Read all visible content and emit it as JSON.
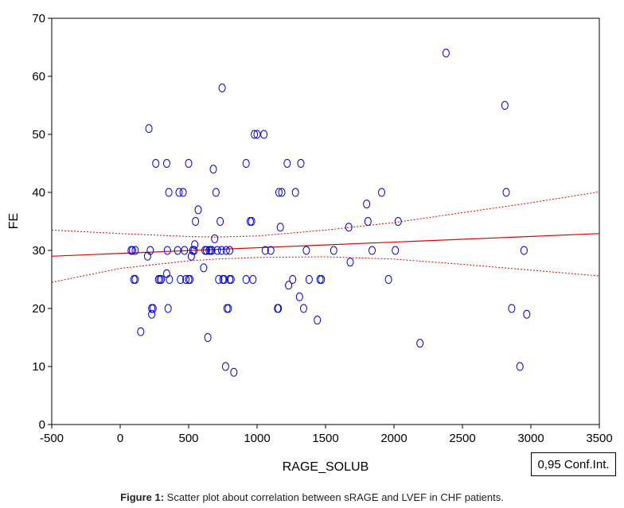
{
  "chart_data": {
    "type": "scatter",
    "xlabel": "RAGE_SOLUB",
    "ylabel": "FE",
    "xlim": [
      -500,
      3500
    ],
    "ylim": [
      0,
      70
    ],
    "xticks": [
      -500,
      0,
      500,
      1000,
      1500,
      2000,
      2500,
      3000,
      3500
    ],
    "yticks": [
      0,
      10,
      20,
      30,
      40,
      50,
      60,
      70
    ],
    "grid": false,
    "legend": "0,95 Conf.Int.",
    "legend_placement": "bottom-right",
    "marker_color": "#0000cc",
    "fit_color": "#dd0000",
    "fit_line": {
      "x": [
        -500,
        3500
      ],
      "y": [
        29.0,
        32.9
      ]
    },
    "conf_upper": {
      "x": [
        -500,
        0,
        500,
        700,
        1000,
        1500,
        2000,
        2500,
        3000,
        3500
      ],
      "y": [
        33.5,
        32.9,
        32.4,
        32.3,
        32.5,
        33.5,
        34.8,
        36.5,
        38.2,
        40.1
      ]
    },
    "conf_lower": {
      "x": [
        -500,
        0,
        500,
        700,
        1000,
        1500,
        2000,
        2500,
        3000,
        3500
      ],
      "y": [
        24.5,
        26.9,
        28.2,
        28.5,
        28.8,
        28.9,
        28.5,
        27.6,
        26.6,
        25.6
      ]
    },
    "points": [
      [
        80,
        30
      ],
      [
        90,
        30
      ],
      [
        110,
        30
      ],
      [
        100,
        25
      ],
      [
        110,
        25
      ],
      [
        150,
        16
      ],
      [
        200,
        29
      ],
      [
        210,
        51
      ],
      [
        220,
        30
      ],
      [
        230,
        19
      ],
      [
        230,
        20
      ],
      [
        240,
        20
      ],
      [
        260,
        45
      ],
      [
        280,
        25
      ],
      [
        290,
        25
      ],
      [
        300,
        25
      ],
      [
        340,
        45
      ],
      [
        340,
        26
      ],
      [
        345,
        30
      ],
      [
        350,
        20
      ],
      [
        355,
        40
      ],
      [
        360,
        25
      ],
      [
        420,
        30
      ],
      [
        430,
        40
      ],
      [
        440,
        25
      ],
      [
        460,
        40
      ],
      [
        470,
        30
      ],
      [
        480,
        25
      ],
      [
        500,
        25
      ],
      [
        500,
        45
      ],
      [
        510,
        25
      ],
      [
        520,
        29
      ],
      [
        530,
        30
      ],
      [
        540,
        30
      ],
      [
        545,
        31
      ],
      [
        550,
        35
      ],
      [
        570,
        37
      ],
      [
        610,
        27
      ],
      [
        620,
        30
      ],
      [
        630,
        30
      ],
      [
        640,
        15
      ],
      [
        650,
        30
      ],
      [
        660,
        30
      ],
      [
        670,
        30
      ],
      [
        680,
        44
      ],
      [
        690,
        32
      ],
      [
        700,
        40
      ],
      [
        710,
        30
      ],
      [
        720,
        25
      ],
      [
        730,
        35
      ],
      [
        740,
        30
      ],
      [
        745,
        58
      ],
      [
        750,
        25
      ],
      [
        760,
        25
      ],
      [
        770,
        10
      ],
      [
        775,
        30
      ],
      [
        780,
        20
      ],
      [
        790,
        20
      ],
      [
        800,
        30
      ],
      [
        800,
        25
      ],
      [
        810,
        25
      ],
      [
        830,
        9
      ],
      [
        920,
        45
      ],
      [
        920,
        25
      ],
      [
        950,
        35
      ],
      [
        960,
        35
      ],
      [
        970,
        25
      ],
      [
        980,
        50
      ],
      [
        1000,
        50
      ],
      [
        1050,
        50
      ],
      [
        1060,
        30
      ],
      [
        1100,
        30
      ],
      [
        1150,
        20
      ],
      [
        1155,
        20
      ],
      [
        1160,
        40
      ],
      [
        1170,
        34
      ],
      [
        1180,
        40
      ],
      [
        1220,
        45
      ],
      [
        1230,
        24
      ],
      [
        1260,
        25
      ],
      [
        1280,
        40
      ],
      [
        1310,
        22
      ],
      [
        1320,
        45
      ],
      [
        1340,
        20
      ],
      [
        1360,
        30
      ],
      [
        1380,
        25
      ],
      [
        1440,
        18
      ],
      [
        1460,
        25
      ],
      [
        1470,
        25
      ],
      [
        1560,
        30
      ],
      [
        1670,
        34
      ],
      [
        1680,
        28
      ],
      [
        1800,
        38
      ],
      [
        1810,
        35
      ],
      [
        1840,
        30
      ],
      [
        1910,
        40
      ],
      [
        1960,
        25
      ],
      [
        2010,
        30
      ],
      [
        2030,
        35
      ],
      [
        2190,
        14
      ],
      [
        2380,
        64
      ],
      [
        2810,
        55
      ],
      [
        2820,
        40
      ],
      [
        2860,
        20
      ],
      [
        2920,
        10
      ],
      [
        2950,
        30
      ],
      [
        2970,
        19
      ]
    ]
  },
  "caption": {
    "label": "Figure 1:",
    "text": " Scatter plot about correlation between sRAGE and LVEF in CHF patients."
  }
}
